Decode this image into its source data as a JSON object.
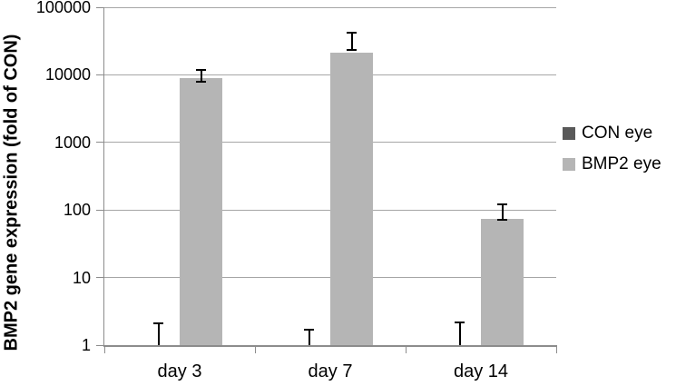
{
  "chart_data": {
    "type": "bar",
    "y_scale": "log",
    "title": "",
    "xlabel": "",
    "ylabel": "BMP2 gene expression (fold of CON)",
    "categories": [
      "day 3",
      "day 7",
      "day 14"
    ],
    "series": [
      {
        "name": "CON eye",
        "color": "#595959",
        "values": [
          1,
          1,
          1
        ],
        "error_low": [
          1,
          1,
          1
        ],
        "error_high": [
          2.1,
          1.7,
          2.2
        ]
      },
      {
        "name": "BMP2 eye",
        "color": "#b5b5b5",
        "values": [
          9000,
          21000,
          74
        ],
        "error_low": [
          8000,
          23000,
          72
        ],
        "error_high": [
          12000,
          42000,
          120
        ]
      }
    ],
    "ylim": [
      1,
      100000
    ],
    "ytick_labels": [
      "1",
      "10",
      "100",
      "1000",
      "10000",
      "100000"
    ],
    "grid": true,
    "legend_position": "right",
    "colors": {
      "gridline": "#a6a6a6",
      "axis": "#8c8c8c",
      "error_bar": "#000000",
      "text": "#000000",
      "background": "#ffffff"
    }
  }
}
